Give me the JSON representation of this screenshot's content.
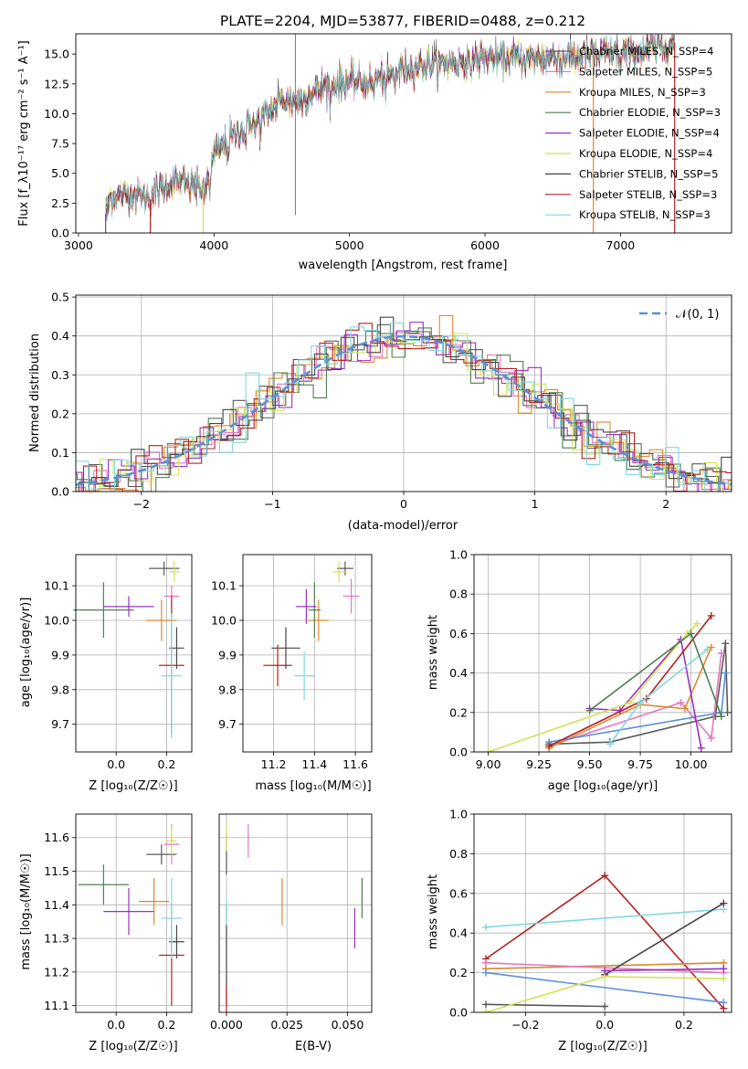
{
  "chart_data": [
    {
      "id": "spectrum",
      "type": "line",
      "title": "PLATE=2204, MJD=53877, FIBERID=0488, z=0.212",
      "xlabel": "wavelength [Angstrom, rest frame]",
      "ylabel": "Flux [f_λ10⁻¹⁷ erg cm⁻² s⁻¹ A⁻¹]",
      "xlim": [
        2980,
        7820
      ],
      "ylim": [
        0,
        16.7
      ],
      "xticks": [
        3000,
        4000,
        5000,
        6000,
        7000
      ],
      "yticks": [
        0.0,
        2.5,
        5.0,
        7.5,
        10.0,
        12.5,
        15.0
      ],
      "legend_position": "upper-right",
      "legend": [
        {
          "label": "Chabrier MILES, N_SSP=4",
          "color": "#5a5a5a"
        },
        {
          "label": "Salpeter MILES, N_SSP=5",
          "color": "#e377c2"
        },
        {
          "label": "Kroupa MILES, N_SSP=3",
          "color": "#d98a2e"
        },
        {
          "label": "Chabrier ELODIE, N_SSP=3",
          "color": "#4f7f4f"
        },
        {
          "label": "Salpeter ELODIE, N_SSP=4",
          "color": "#9b30c0"
        },
        {
          "label": "Kroupa ELODIE, N_SSP=4",
          "color": "#d4e157"
        },
        {
          "label": "Chabrier STELIB, N_SSP=5",
          "color": "#444444"
        },
        {
          "label": "Salpeter STELIB, N_SSP=3",
          "color": "#b22222"
        },
        {
          "label": "Kroupa STELIB, N_SSP=3",
          "color": "#80d8e0"
        }
      ],
      "envelope": {
        "x": [
          3200,
          3230,
          3300,
          3400,
          3500,
          3530,
          3560,
          3700,
          3850,
          3920,
          3950,
          4000,
          4100,
          4200,
          4300,
          4400,
          4500,
          4600,
          4700,
          4800,
          4900,
          5000,
          5100,
          5200,
          5300,
          5400,
          5500,
          5600,
          5700,
          5800,
          5900,
          6000,
          6100,
          6200,
          6300,
          6400,
          6500,
          6600,
          6700,
          6800,
          6900,
          7000,
          7100,
          7200,
          7300,
          7400
        ],
        "y": [
          1.5,
          3.0,
          3.1,
          3.3,
          3.0,
          2.8,
          3.5,
          4.3,
          4.0,
          3.8,
          4.5,
          6.5,
          7.8,
          8.7,
          9.5,
          10.0,
          11.2,
          11.0,
          11.5,
          12.3,
          12.5,
          12.8,
          12.6,
          12.9,
          13.3,
          13.8,
          14.0,
          14.2,
          14.3,
          14.3,
          14.6,
          14.7,
          14.5,
          14.6,
          14.6,
          14.6,
          14.8,
          14.9,
          14.8,
          14.9,
          15.0,
          15.1,
          15.0,
          15.4,
          15.6,
          16.0
        ]
      }
    },
    {
      "id": "residuals",
      "type": "histogram",
      "xlabel": "(data-model)/error",
      "ylabel": "Normed distribution",
      "xlim": [
        -2.5,
        2.5
      ],
      "ylim": [
        0,
        0.505
      ],
      "xticks": [
        -2,
        -1,
        0,
        1,
        2
      ],
      "yticks": [
        0.0,
        0.1,
        0.2,
        0.3,
        0.4,
        0.5
      ],
      "gaussian_label": "𝒩(0, 1)",
      "gaussian_color": "#5b8fd9",
      "grid": true
    },
    {
      "id": "age-vs-Z",
      "type": "scatter",
      "xlabel": "Z [log₁₀(Z/Z☉)]",
      "ylabel": "age  [log₁₀(age/yr)]",
      "xlim": [
        -0.16,
        0.3
      ],
      "ylim": [
        9.62,
        10.19
      ],
      "xticks": [
        0.0,
        0.2
      ],
      "yticks": [
        9.7,
        9.8,
        9.9,
        10.0,
        10.1
      ],
      "grid": true
    },
    {
      "id": "age-vs-mass",
      "type": "scatter",
      "xlabel": "mass [log₁₀(M/M☉)]",
      "xlim": [
        11.05,
        11.68
      ],
      "ylim": [
        9.62,
        10.19
      ],
      "xticks": [
        11.2,
        11.4,
        11.6
      ],
      "yticks": [
        9.7,
        9.8,
        9.9,
        10.0,
        10.1
      ],
      "grid": true
    },
    {
      "id": "weight-vs-age",
      "type": "line",
      "xlabel": "age  [log₁₀(age/yr)]",
      "ylabel": "mass weight",
      "xlim": [
        8.93,
        10.2
      ],
      "ylim": [
        0,
        1.0
      ],
      "xticks": [
        9.0,
        9.25,
        9.5,
        9.75,
        10.0
      ],
      "yticks": [
        0.0,
        0.2,
        0.4,
        0.6,
        0.8,
        1.0
      ],
      "grid": true,
      "series": [
        {
          "color": "#5a5a5a",
          "points": [
            [
              9.3,
              0.04
            ],
            [
              9.6,
              0.05
            ],
            [
              10.12,
              0.18
            ],
            [
              10.17,
              0.55
            ],
            [
              10.18,
              0.2
            ]
          ]
        },
        {
          "color": "#e377c2",
          "points": [
            [
              9.3,
              0.03
            ],
            [
              9.95,
              0.25
            ],
            [
              10.1,
              0.07
            ],
            [
              10.15,
              0.5
            ]
          ]
        },
        {
          "color": "#d98a2e",
          "points": [
            [
              9.3,
              0.02
            ],
            [
              9.75,
              0.24
            ],
            [
              9.97,
              0.22
            ],
            [
              10.1,
              0.53
            ]
          ]
        },
        {
          "color": "#5b8fd9",
          "points": [
            [
              9.3,
              0.05
            ],
            [
              10.15,
              0.2
            ],
            [
              10.17,
              0.4
            ]
          ]
        },
        {
          "color": "#9b30c0",
          "points": [
            [
              9.5,
              0.22
            ],
            [
              9.65,
              0.21
            ],
            [
              9.95,
              0.57
            ],
            [
              10.05,
              0.02
            ]
          ]
        },
        {
          "color": "#d4e157",
          "points": [
            [
              9.0,
              0.0
            ],
            [
              9.7,
              0.25
            ],
            [
              9.98,
              0.6
            ],
            [
              10.03,
              0.65
            ]
          ]
        },
        {
          "color": "#b22222",
          "points": [
            [
              9.3,
              0.03
            ],
            [
              9.78,
              0.27
            ],
            [
              10.1,
              0.69
            ]
          ]
        },
        {
          "color": "#80d8e0",
          "points": [
            [
              9.6,
              0.04
            ],
            [
              9.75,
              0.25
            ],
            [
              10.08,
              0.52
            ]
          ]
        },
        {
          "color": "#4f7f4f",
          "points": [
            [
              9.5,
              0.21
            ],
            [
              10.0,
              0.6
            ],
            [
              10.15,
              0.18
            ]
          ]
        }
      ]
    },
    {
      "id": "mass-vs-Z",
      "type": "scatter",
      "xlabel": "Z [log₁₀(Z/Z☉)]",
      "ylabel": "mass [log₁₀(M/M☉)]",
      "xlim": [
        -0.16,
        0.3
      ],
      "ylim": [
        11.08,
        11.67
      ],
      "xticks": [
        0.0,
        0.2
      ],
      "yticks": [
        11.1,
        11.2,
        11.3,
        11.4,
        11.5,
        11.6
      ],
      "grid": true
    },
    {
      "id": "mass-vs-EBV",
      "type": "scatter",
      "xlabel": "E(B-V)",
      "xlim": [
        -0.003,
        0.06
      ],
      "ylim": [
        11.08,
        11.67
      ],
      "xticks": [
        0.0,
        0.025,
        0.05
      ],
      "xtick_labels": [
        "0.000",
        "0.025",
        "0.050"
      ],
      "yticks": [
        11.1,
        11.2,
        11.3,
        11.4,
        11.5,
        11.6
      ],
      "grid": true
    },
    {
      "id": "weight-vs-Z",
      "type": "line",
      "xlabel": "Z [log₁₀(Z/Z☉)]",
      "ylabel": "mass weight",
      "xlim": [
        -0.33,
        0.32
      ],
      "ylim": [
        0,
        1.0
      ],
      "xticks": [
        -0.2,
        0.0,
        0.2
      ],
      "yticks": [
        0.0,
        0.2,
        0.4,
        0.6,
        0.8,
        1.0
      ],
      "grid": true,
      "series": [
        {
          "color": "#b22222",
          "points": [
            [
              -0.3,
              0.27
            ],
            [
              0.0,
              0.69
            ],
            [
              0.3,
              0.02
            ]
          ]
        },
        {
          "color": "#80d8e0",
          "points": [
            [
              -0.3,
              0.43
            ],
            [
              0.3,
              0.52
            ]
          ]
        },
        {
          "color": "#d98a2e",
          "points": [
            [
              -0.3,
              0.22
            ],
            [
              0.3,
              0.25
            ]
          ]
        },
        {
          "color": "#e377c2",
          "points": [
            [
              -0.3,
              0.25
            ],
            [
              0.3,
              0.2
            ]
          ]
        },
        {
          "color": "#5b8fd9",
          "points": [
            [
              -0.3,
              0.2
            ],
            [
              0.3,
              0.05
            ]
          ]
        },
        {
          "color": "#5a5a5a",
          "points": [
            [
              -0.3,
              0.04
            ],
            [
              0.0,
              0.03
            ]
          ]
        },
        {
          "color": "#444444",
          "points": [
            [
              0.0,
              0.19
            ],
            [
              0.3,
              0.55
            ]
          ]
        },
        {
          "color": "#d4e157",
          "points": [
            [
              -0.3,
              0.0
            ],
            [
              0.0,
              0.18
            ],
            [
              0.3,
              0.17
            ]
          ]
        },
        {
          "color": "#9b30c0",
          "points": [
            [
              0.0,
              0.21
            ],
            [
              0.3,
              0.22
            ]
          ]
        }
      ]
    }
  ]
}
